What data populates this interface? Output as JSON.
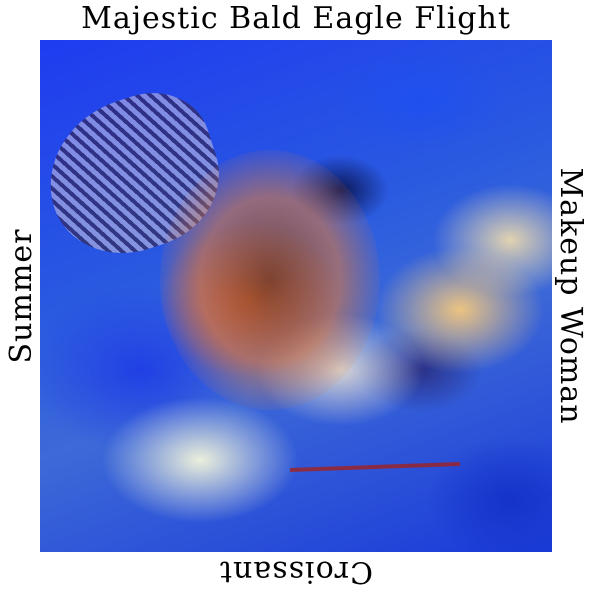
{
  "labels": {
    "top": "Majestic Bald Eagle Flight",
    "bottom": "Croissant",
    "left": "Summer",
    "right": "Makeup Woman"
  },
  "image": {
    "dominant_colors": [
      "#1e3cf0",
      "#dc5a32",
      "#ffcd78",
      "#ffffdc",
      "#0a1450"
    ]
  }
}
